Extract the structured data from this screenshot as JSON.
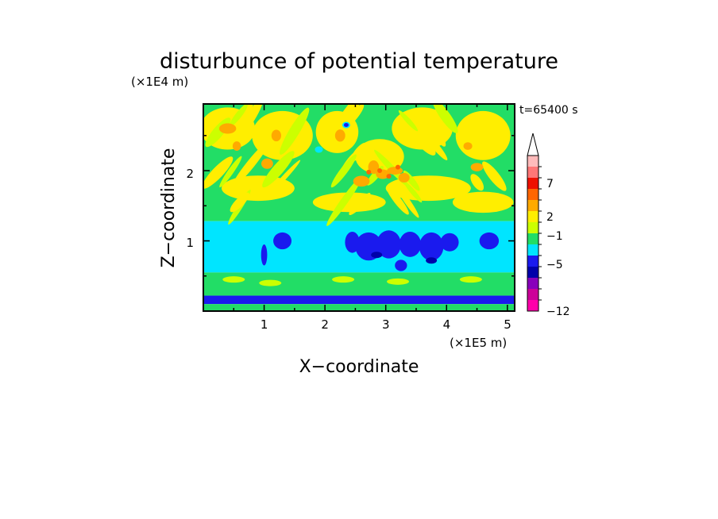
{
  "chart_data": {
    "type": "heatmap",
    "title": "disturbunce of potential temperature",
    "time_label": "t=65400 s",
    "xlabel": "X−coordinate",
    "ylabel": "Z−coordinate",
    "x_unit": "(×1E5 m)",
    "y_unit": "(×1E4 m)",
    "xlim": [
      0,
      5.12
    ],
    "ylim": [
      0,
      2.95
    ],
    "x_ticks": [
      "1",
      "2",
      "3",
      "4",
      "5"
    ],
    "y_ticks": [
      "1",
      "2"
    ],
    "colorbar": {
      "labels": [
        {
          "level": 7,
          "text": "7"
        },
        {
          "level": 2,
          "text": "2"
        },
        {
          "level": -1,
          "text": "−1"
        },
        {
          "level": -5,
          "text": "−5"
        },
        {
          "level": -12,
          "text": "−12"
        }
      ],
      "bins": [
        {
          "color": "#ff00aa"
        },
        {
          "color": "#cc0099"
        },
        {
          "color": "#8800bb"
        },
        {
          "color": "#0000aa"
        },
        {
          "color": "#1a1aee"
        },
        {
          "color": "#00e5ff"
        },
        {
          "color": "#22dd66"
        },
        {
          "color": "#ccff00"
        },
        {
          "color": "#ffee00"
        },
        {
          "color": "#ffaa00"
        },
        {
          "color": "#ff6600"
        },
        {
          "color": "#ee1100"
        },
        {
          "color": "#ff7777"
        },
        {
          "color": "#ffbbbb"
        }
      ],
      "extend_top": true
    },
    "layers": [
      {
        "z": [
          0.0,
          0.1
        ],
        "description": "green"
      },
      {
        "z": [
          0.1,
          0.22
        ],
        "description": "blue band"
      },
      {
        "z": [
          0.22,
          0.55
        ],
        "description": "green"
      },
      {
        "z": [
          0.55,
          1.28
        ],
        "description": "cyan with blue patches"
      },
      {
        "z": [
          1.28,
          2.95
        ],
        "description": "green / yellow / orange wave pattern"
      }
    ]
  }
}
